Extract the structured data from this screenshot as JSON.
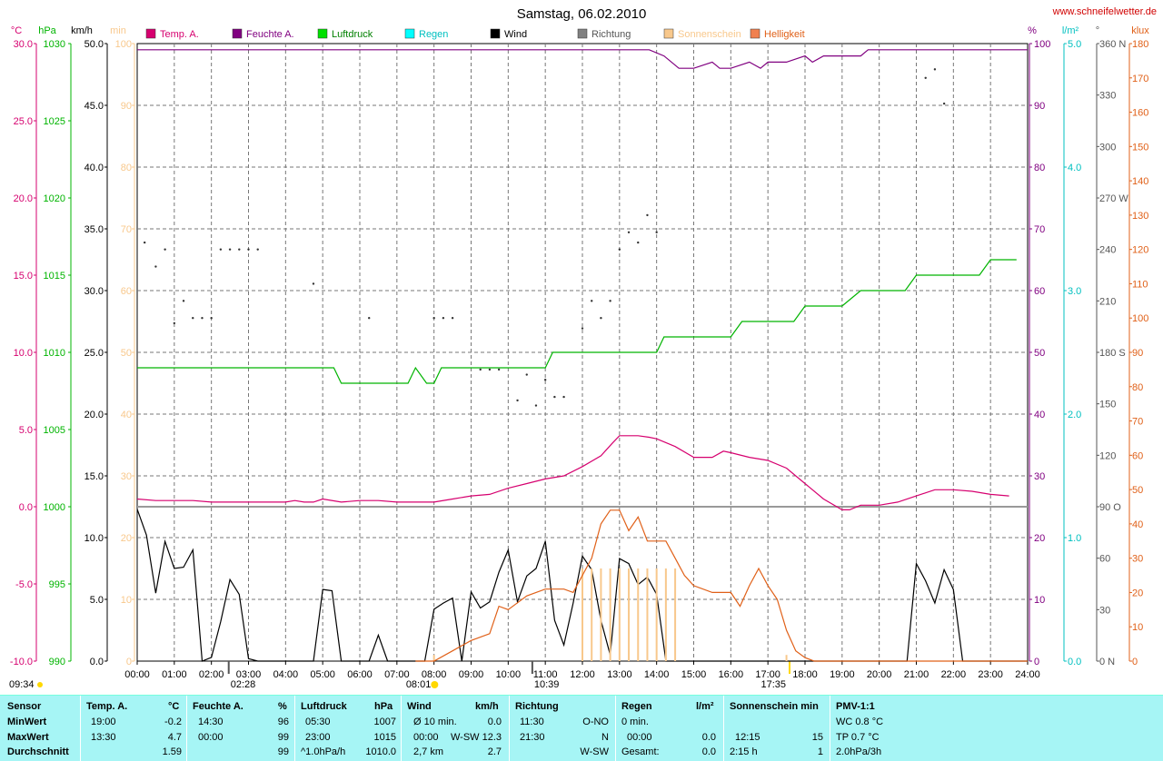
{
  "chart_data": {
    "type": "line",
    "title": "Samstag, 06.02.2010",
    "source_label": "www.schneifelwetter.de",
    "x_ticks": [
      "00:00",
      "01:00",
      "02:00",
      "03:00",
      "04:00",
      "05:00",
      "06:00",
      "07:00",
      "08:00",
      "09:00",
      "10:00",
      "11:00",
      "12:00",
      "13:00",
      "14:00",
      "15:00",
      "16:00",
      "17:00",
      "18:00",
      "19:00",
      "20:00",
      "21:00",
      "22:00",
      "23:00",
      "24:00"
    ],
    "axes": {
      "temp": {
        "unit": "°C",
        "color": "#d6006f",
        "range": [
          -10,
          30
        ],
        "ticks": [
          "30.0",
          "25.0",
          "20.0",
          "15.0",
          "10.0",
          "5.0",
          "0.0",
          "-5.0",
          "-10.0"
        ]
      },
      "pressure": {
        "unit": "hPa",
        "color": "#00b400",
        "range": [
          990,
          1030
        ],
        "ticks": [
          "1030",
          "1025",
          "1020",
          "1015",
          "1010",
          "1005",
          "1000",
          "995",
          "990"
        ]
      },
      "wind": {
        "unit": "km/h",
        "color": "#000000",
        "range": [
          0,
          50
        ],
        "ticks": [
          "50.0",
          "45.0",
          "40.0",
          "35.0",
          "30.0",
          "25.0",
          "20.0",
          "15.0",
          "10.0",
          "5.0",
          "0.0"
        ]
      },
      "sun": {
        "unit": "min",
        "color": "#f8c88c",
        "range": [
          0,
          100
        ],
        "ticks": [
          "100",
          "90",
          "80",
          "70",
          "60",
          "50",
          "40",
          "30",
          "20",
          "10",
          "0"
        ]
      },
      "humidity": {
        "unit": "%",
        "color": "#800080",
        "range": [
          0,
          100
        ],
        "ticks": [
          "100",
          "90",
          "80",
          "70",
          "60",
          "50",
          "40",
          "30",
          "20",
          "10",
          "0"
        ]
      },
      "rain": {
        "unit": "l/m²",
        "color": "#00c0c0",
        "range": [
          0,
          5
        ],
        "ticks": [
          "5.0",
          "4.0",
          "3.0",
          "2.0",
          "1.0",
          "0.0"
        ]
      },
      "direction": {
        "unit": "°",
        "color": "#000000",
        "range": [
          0,
          360
        ],
        "ticks": [
          "360 N",
          "330",
          "300",
          "270 W",
          "240",
          "210",
          "180 S",
          "150",
          "120",
          "90 O",
          "60",
          "30",
          "0 N"
        ]
      },
      "brightness": {
        "unit": "klux",
        "color": "#e06018",
        "range": [
          0,
          180
        ],
        "ticks": [
          "180",
          "170",
          "160",
          "150",
          "140",
          "130",
          "120",
          "110",
          "100",
          "90",
          "80",
          "70",
          "60",
          "50",
          "40",
          "30",
          "20",
          "10",
          "0"
        ]
      }
    },
    "legend": [
      "Temp. A.",
      "Feuchte A.",
      "Luftdruck",
      "Regen",
      "Wind",
      "Richtung",
      "Sonnenschein",
      "Helligkeit"
    ],
    "series": [
      {
        "name": "Temp. A.",
        "color": "#d6006f",
        "axis": "temp",
        "x": [
          0,
          0.5,
          1,
          1.5,
          2,
          2.5,
          3,
          3.5,
          4,
          4.25,
          4.5,
          4.75,
          5,
          5.5,
          6,
          6.5,
          7,
          7.5,
          8,
          8.5,
          9,
          9.5,
          10,
          10.5,
          11,
          11.5,
          12,
          12.5,
          12.8,
          13,
          13.3,
          13.5,
          13.8,
          14,
          14.5,
          15,
          15.5,
          15.8,
          16,
          16.5,
          17,
          17.5,
          18,
          18.5,
          19,
          19.2,
          19.5,
          20,
          20.5,
          21,
          21.5,
          22,
          22.5,
          23,
          23.5
        ],
        "y": [
          0.5,
          0.4,
          0.4,
          0.4,
          0.3,
          0.3,
          0.3,
          0.3,
          0.3,
          0.4,
          0.3,
          0.3,
          0.5,
          0.3,
          0.4,
          0.4,
          0.3,
          0.3,
          0.3,
          0.5,
          0.7,
          0.8,
          1.2,
          1.5,
          1.8,
          2.0,
          2.6,
          3.3,
          4.1,
          4.6,
          4.6,
          4.6,
          4.5,
          4.4,
          3.9,
          3.2,
          3.2,
          3.6,
          3.5,
          3.2,
          3.0,
          2.5,
          1.5,
          0.5,
          -0.2,
          -0.2,
          0.1,
          0.1,
          0.3,
          0.7,
          1.1,
          1.1,
          1.0,
          0.8,
          0.7
        ]
      },
      {
        "name": "Feuchte A.",
        "color": "#800080",
        "axis": "humidity",
        "x": [
          0,
          13.8,
          14.2,
          14.6,
          15,
          15.5,
          15.7,
          16,
          16.5,
          16.8,
          17,
          17.5,
          18,
          18.2,
          18.5,
          19,
          19.5,
          19.7,
          20,
          24
        ],
        "y": [
          99,
          99,
          98,
          96,
          96,
          97,
          96,
          96,
          97,
          96,
          97,
          97,
          98,
          97,
          98,
          98,
          98,
          99,
          99,
          99
        ]
      },
      {
        "name": "Luftdruck",
        "color": "#00b400",
        "axis": "pressure",
        "x": [
          0,
          5.3,
          5.5,
          7.3,
          7.5,
          7.8,
          8,
          8.2,
          8.5,
          10,
          11,
          11.2,
          12,
          13,
          14,
          14.2,
          15,
          16,
          16.3,
          17,
          17.7,
          18,
          19,
          19.5,
          20,
          20.7,
          21,
          22,
          22.7,
          23,
          23.7
        ],
        "y": [
          1009,
          1009,
          1008,
          1008,
          1009,
          1008,
          1008,
          1009,
          1009,
          1009,
          1009,
          1010,
          1010,
          1010,
          1010,
          1011,
          1011,
          1011,
          1012,
          1012,
          1012,
          1013,
          1013,
          1014,
          1014,
          1014,
          1015,
          1015,
          1015,
          1016,
          1016
        ]
      },
      {
        "name": "Wind",
        "color": "#000000",
        "axis": "wind",
        "x": [
          0,
          0.25,
          0.5,
          0.75,
          1,
          1.25,
          1.5,
          1.75,
          2,
          2.25,
          2.5,
          2.75,
          3,
          3.25,
          3.5,
          3.75,
          4,
          4.25,
          4.5,
          4.75,
          5,
          5.25,
          5.5,
          5.75,
          6,
          6.25,
          6.5,
          6.75,
          7,
          7.25,
          7.5,
          7.75,
          8,
          8.25,
          8.5,
          8.75,
          9,
          9.25,
          9.5,
          9.75,
          10,
          10.25,
          10.5,
          10.75,
          11,
          11.25,
          11.5,
          11.75,
          12,
          12.25,
          12.5,
          12.75,
          13,
          13.25,
          13.5,
          13.75,
          14,
          14.25,
          14.5,
          14.75,
          15,
          20.75,
          21,
          21.25,
          21.5,
          21.75,
          22,
          22.25,
          22.5,
          22.75,
          23,
          24
        ],
        "y": [
          12.3,
          10.2,
          5.5,
          9.7,
          7.5,
          7.6,
          9.0,
          0.0,
          0.3,
          3.2,
          6.6,
          5.4,
          0.2,
          0.0,
          0.0,
          0.0,
          0.0,
          0.0,
          0.0,
          0.0,
          5.8,
          5.7,
          0.0,
          0.0,
          0.0,
          0.0,
          2.1,
          0.0,
          0.0,
          0.0,
          0.0,
          0.0,
          4.2,
          4.7,
          5.1,
          0.0,
          5.6,
          4.3,
          4.8,
          7.2,
          9.0,
          4.8,
          6.9,
          7.5,
          9.7,
          3.3,
          1.3,
          4.7,
          8.5,
          7.4,
          3.3,
          0.5,
          8.3,
          7.9,
          6.2,
          6.8,
          5.4,
          0.0,
          0.0,
          0.0,
          0.0,
          0.0,
          7.9,
          6.5,
          4.7,
          7.4,
          5.8,
          0.0,
          0.0,
          0.0,
          0.0,
          0.0
        ]
      },
      {
        "name": "Richtung",
        "color": "#000000",
        "axis": "direction",
        "style": "dots",
        "x": [
          0.2,
          0.5,
          0.75,
          1,
          1.25,
          1.5,
          1.75,
          2,
          2.25,
          2.5,
          2.75,
          3,
          3.25,
          4.75,
          6.25,
          8,
          8.25,
          8.5,
          9.25,
          9.5,
          9.75,
          10.25,
          10.5,
          10.75,
          11,
          11.25,
          11.5,
          12,
          12.25,
          12.5,
          12.75,
          13,
          13.25,
          13.5,
          13.75,
          14,
          21.25,
          21.5,
          21.75
        ],
        "y": [
          244,
          230,
          240,
          197,
          210,
          200,
          200,
          200,
          240,
          240,
          240,
          240,
          240,
          220,
          200,
          200,
          200,
          200,
          170,
          170,
          170,
          152,
          167,
          149,
          164,
          154,
          154,
          194,
          210,
          200,
          210,
          240,
          250,
          244,
          260,
          250,
          340,
          345,
          325
        ]
      },
      {
        "name": "Sonnenschein",
        "color": "#f8c88c",
        "axis": "sun",
        "style": "bars",
        "x": [
          8,
          12,
          12.25,
          12.5,
          12.75,
          13,
          13.25,
          13.5,
          13.75,
          14,
          14.25,
          14.5,
          17.5
        ],
        "y": [
          1,
          15,
          15,
          15,
          15,
          15,
          15,
          15,
          15,
          15,
          15,
          15,
          1
        ]
      },
      {
        "name": "Helligkeit",
        "color": "#e06018",
        "axis": "brightness",
        "x": [
          7.5,
          8,
          8.5,
          9,
          9.5,
          9.75,
          10,
          10.25,
          10.5,
          11,
          11.5,
          11.75,
          12,
          12.25,
          12.5,
          12.75,
          13,
          13.25,
          13.5,
          13.75,
          14,
          14.25,
          14.5,
          14.75,
          15,
          15.5,
          16,
          16.25,
          16.5,
          16.75,
          17,
          17.25,
          17.5,
          17.75,
          18,
          18.25,
          18.5,
          24
        ],
        "y": [
          0,
          0,
          3,
          6,
          8,
          16,
          15,
          17,
          19,
          21,
          21,
          20,
          25,
          30,
          40,
          44,
          44,
          38,
          42,
          35,
          35,
          35,
          30,
          25,
          22,
          20,
          20,
          16,
          22,
          27,
          22,
          18,
          9,
          3,
          1,
          0,
          0,
          0
        ]
      }
    ],
    "markers": {
      "sunrise": "08:01",
      "sunset": "17:35",
      "marker1": "02:28",
      "marker2": "10:39",
      "time_left": "09:34"
    }
  },
  "table": {
    "rows": [
      "Sensor",
      "MinWert",
      "MaxWert",
      "Durchschnitt"
    ],
    "temp": {
      "h1": "Temp. A.",
      "h2": "°C",
      "min_t": "19:00",
      "min_v": "-0.2",
      "max_t": "13:30",
      "max_v": "4.7",
      "avg_v": "1.59"
    },
    "hum": {
      "h1": "Feuchte A.",
      "h2": "%",
      "min_t": "14:30",
      "min_v": "96",
      "max_t": "00:00",
      "max_v": "99",
      "avg_v": "99"
    },
    "press": {
      "h1": "Luftdruck",
      "h2": "hPa",
      "min_t": "05:30",
      "min_v": "1007",
      "max_t": "23:00",
      "max_v": "1015",
      "avg_l": "^1.0hPa/h",
      "avg_v": "1010.0"
    },
    "wind": {
      "h1": "Wind",
      "h2": "km/h",
      "min_l": "Ø 10 min.",
      "min_v": "0.0",
      "max_t": "00:00",
      "max_l": "W-SW",
      "max_v": "12.3",
      "avg_l": "2,7 km",
      "avg_v": "2.7"
    },
    "dir": {
      "h1": "Richtung",
      "min_t": "11:30",
      "min_v": "O-NO",
      "max_t": "21:30",
      "max_v": "N",
      "avg_v": "W-SW"
    },
    "rain": {
      "h1": "Regen",
      "h2": "l/m²",
      "min_l": "0 min.",
      "max_t": "00:00",
      "max_v": "0.0",
      "avg_l": "Gesamt:",
      "avg_v": "0.0"
    },
    "sun": {
      "h1": "Sonnenschein min",
      "max_t": "12:15",
      "max_v": "15",
      "avg_l": "2:15 h",
      "avg_v": "1"
    },
    "pmv": {
      "h1": "PMV-1:1",
      "min_v": "WC 0.8 °C",
      "max_v": "TP 0.7 °C",
      "avg_v": "2.0hPa/3h"
    }
  }
}
